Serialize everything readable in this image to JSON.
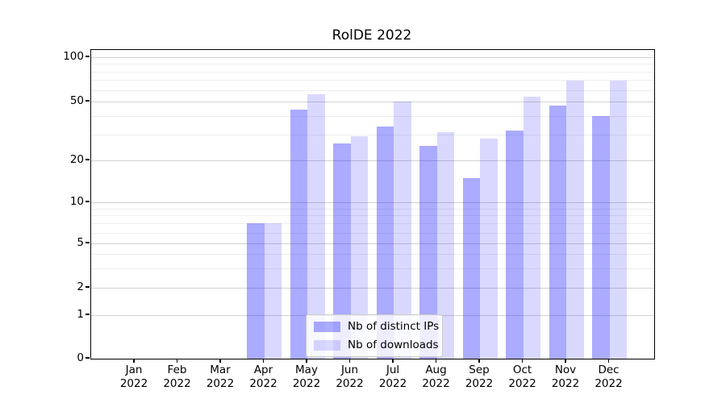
{
  "figure": {
    "title": "RolDE 2022"
  },
  "chart_data": {
    "type": "bar",
    "title": "RolDE 2022",
    "x_categories": [
      {
        "month": "Jan",
        "year": "2022"
      },
      {
        "month": "Feb",
        "year": "2022"
      },
      {
        "month": "Mar",
        "year": "2022"
      },
      {
        "month": "Apr",
        "year": "2022"
      },
      {
        "month": "May",
        "year": "2022"
      },
      {
        "month": "Jun",
        "year": "2022"
      },
      {
        "month": "Jul",
        "year": "2022"
      },
      {
        "month": "Aug",
        "year": "2022"
      },
      {
        "month": "Sep",
        "year": "2022"
      },
      {
        "month": "Oct",
        "year": "2022"
      },
      {
        "month": "Nov",
        "year": "2022"
      },
      {
        "month": "Dec",
        "year": "2022"
      }
    ],
    "series": [
      {
        "name": "Nb of distinct IPs",
        "color": "rgba(0,0,255,0.33)",
        "values": [
          0,
          0,
          0,
          7,
          44,
          26,
          34,
          25,
          15,
          32,
          47,
          40
        ]
      },
      {
        "name": "Nb of downloads",
        "color": "rgba(0,0,255,0.15)",
        "values": [
          0,
          0,
          0,
          7,
          56,
          29,
          50,
          31,
          28,
          54,
          69,
          69
        ]
      }
    ],
    "y_axis": {
      "scale": "symlog",
      "range": [
        0,
        100
      ],
      "major_ticks": [
        0,
        1,
        2,
        5,
        10,
        20,
        50,
        100
      ],
      "minor_ticks": [
        3,
        4,
        6,
        7,
        8,
        9,
        30,
        40,
        60,
        70,
        80,
        90
      ]
    },
    "legend": {
      "position": "lower center"
    },
    "grid": true
  },
  "colors": {
    "grid_major": "#d2d2d2",
    "grid_minor": "#ededed",
    "axis": "#000000",
    "legend_border": "#cccccc",
    "legend_bg": "rgba(255,255,255,0.8)"
  }
}
